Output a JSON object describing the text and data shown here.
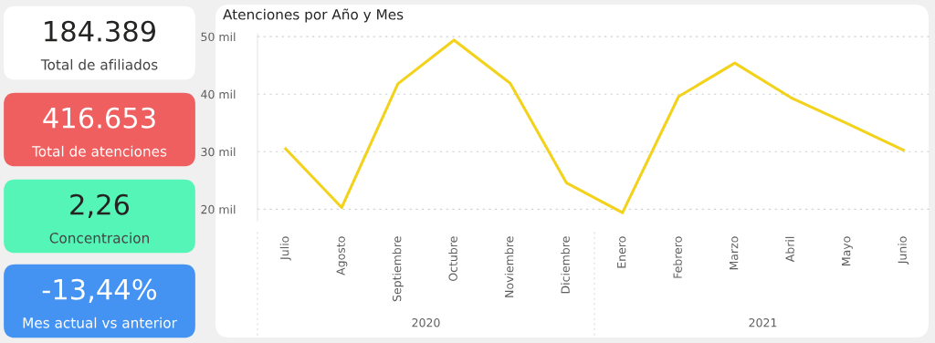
{
  "chart_data": [
    {
      "type": "other",
      "annotations": [
        "184.389",
        "Total de afiliados"
      ],
      "colors": [
        "#ffffff"
      ]
    },
    {
      "type": "other",
      "annotations": [
        "416.653",
        "Total de atenciones"
      ],
      "colors": [
        "#f05f5f"
      ]
    },
    {
      "type": "other",
      "annotations": [
        "2,26",
        "Concentracion"
      ],
      "colors": [
        "#55f5b7"
      ]
    },
    {
      "type": "other",
      "annotations": [
        "-13,44%",
        "Mes actual vs anterior"
      ],
      "colors": [
        "#4493f2"
      ]
    },
    {
      "type": "line",
      "title": "Atenciones por Año y Mes",
      "categories": [
        "Julio",
        "Agosto",
        "Septiembre",
        "Octubre",
        "Noviembre",
        "Diciembre",
        "Enero",
        "Febrero",
        "Marzo",
        "Abril",
        "Mayo",
        "Junio"
      ],
      "series": [
        {
          "color": "#f2d21b",
          "values": [
            30.5,
            20.3,
            41.8,
            49.4,
            41.9,
            24.6,
            19.4,
            39.6,
            45.4,
            39.4,
            34.9,
            30.3
          ]
        }
      ],
      "ylim": [
        18,
        50.5
      ],
      "yticks": [
        {
          "value": 20,
          "label": "20 mil"
        },
        {
          "value": 30,
          "label": "30 mil"
        },
        {
          "value": 40,
          "label": "40 mil"
        },
        {
          "value": 50,
          "label": "50 mil"
        }
      ],
      "grid": "y",
      "marker": "none",
      "line_style": "solid",
      "annotations": [
        "2020",
        "2021"
      ]
    }
  ]
}
